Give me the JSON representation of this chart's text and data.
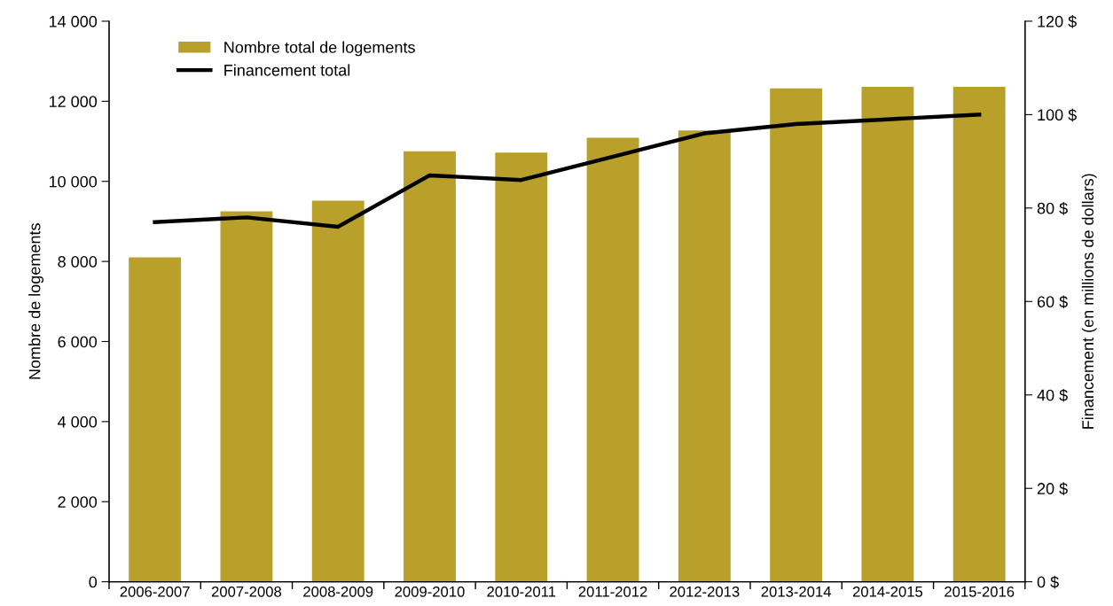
{
  "chart_data": {
    "type": "bar",
    "categories": [
      "2006-2007",
      "2007-2008",
      "2008-2009",
      "2009-2010",
      "2010-2011",
      "2011-2012",
      "2012-2013",
      "2013-2014",
      "2014-2015",
      "2015-2016"
    ],
    "series": [
      {
        "name": "Nombre total de logements",
        "color": "#b8a02a",
        "values": [
          8100,
          9250,
          9520,
          10750,
          10720,
          11090,
          11270,
          12320,
          12360,
          12360
        ]
      },
      {
        "name": "Financement total",
        "type": "line",
        "axis": "y2",
        "color": "#000000",
        "values": [
          77,
          78,
          76,
          87,
          86,
          91,
          96,
          98,
          99,
          100
        ]
      }
    ],
    "ylabel": "Nombre de logements",
    "y2label": "Financement (en millions de dollars)",
    "ylim": [
      0,
      14000
    ],
    "yticks": [
      0,
      {
        "value": 2000,
        "label": "2 000"
      },
      {
        "value": 4000,
        "label": "4 000"
      },
      {
        "value": 6000,
        "label": "6 000"
      },
      {
        "value": 8000,
        "label": "8 000"
      },
      {
        "value": 10000,
        "label": "10 000"
      },
      {
        "value": 12000,
        "label": "12 000"
      },
      {
        "value": 14000,
        "label": "14 000"
      }
    ],
    "y2lim": [
      0,
      120
    ],
    "y2ticks": [
      {
        "value": 0,
        "label": "0 $"
      },
      {
        "value": 20,
        "label": "20 $"
      },
      {
        "value": 40,
        "label": "40 $"
      },
      {
        "value": 60,
        "label": "60 $"
      },
      {
        "value": 80,
        "label": "80 $"
      },
      {
        "value": 100,
        "label": "100 $"
      },
      {
        "value": 120,
        "label": "120 $"
      }
    ],
    "legend": "top left",
    "grid": false,
    "marker": "none",
    "line_style": "solid"
  }
}
